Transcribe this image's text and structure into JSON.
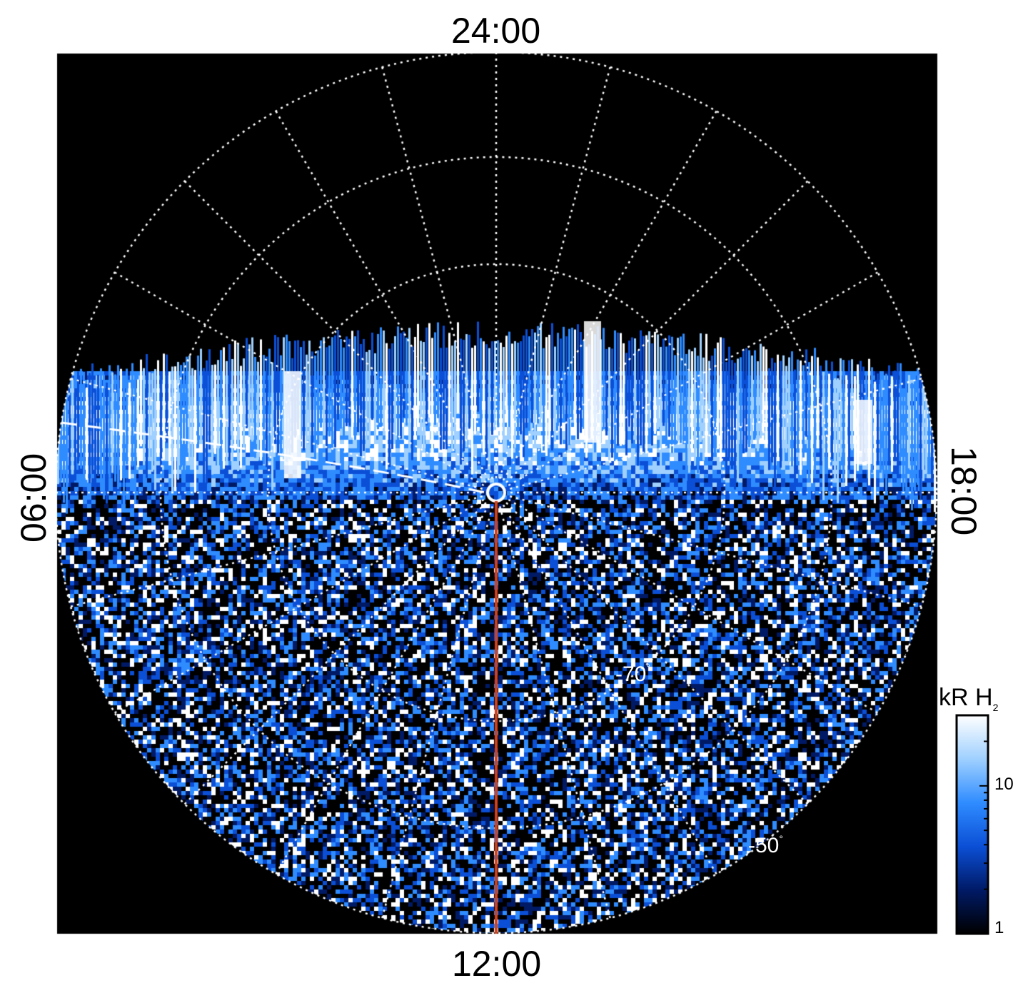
{
  "local_time_labels": {
    "top": "24:00",
    "bottom": "12:00",
    "left": "06:00",
    "right": "18:00"
  },
  "latitude_labels": [
    {
      "text": "-70",
      "degree": "°"
    },
    {
      "text": "-50",
      "degree": "°"
    }
  ],
  "colorbar": {
    "title_main": "kR H",
    "title_sub": "2",
    "scale": "log",
    "range": [
      1,
      30
    ],
    "tick_labels": [
      "10",
      "1"
    ],
    "colors": [
      "#000000",
      "#001a66",
      "#0b4fd6",
      "#2f8cff",
      "#9fd0ff",
      "#ffffff"
    ]
  },
  "map": {
    "background_color": "#000000",
    "grid_color": "#ffffff",
    "meridian_line_color": "#d2401c",
    "projection": "polar, centered on south pole"
  }
}
